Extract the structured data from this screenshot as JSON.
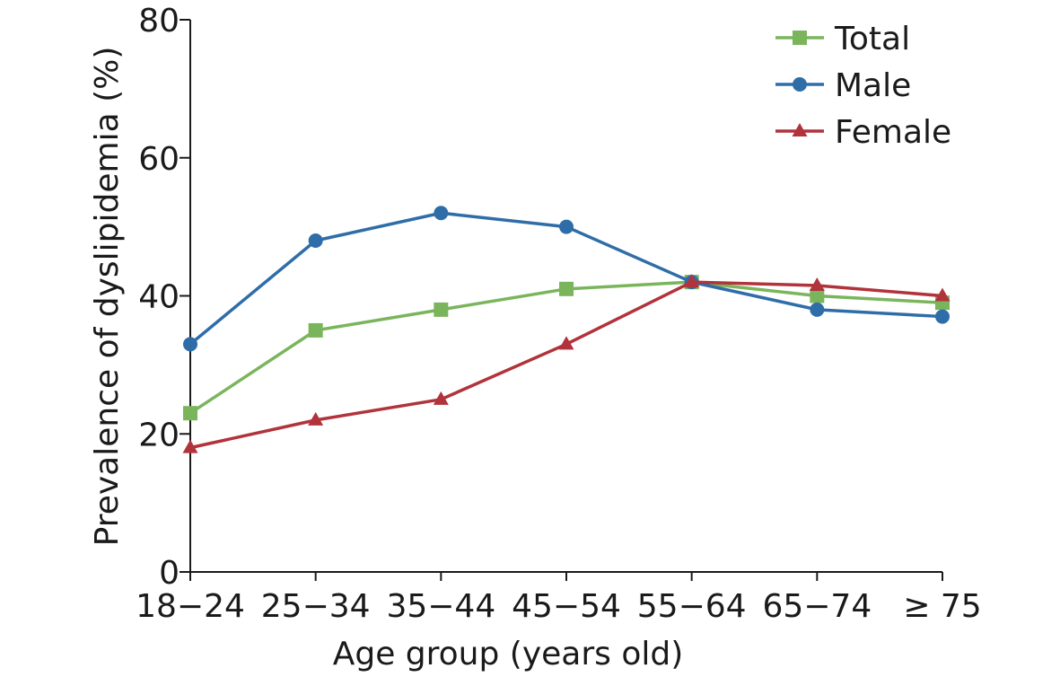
{
  "chart_data": {
    "type": "line",
    "title": "",
    "xlabel": "Age group (years old)",
    "ylabel": "Prevalence of dyslipidemia (%)",
    "categories": [
      "18−24",
      "25−34",
      "35−44",
      "45−54",
      "55−64",
      "65−74",
      "≥ 75"
    ],
    "ylim": [
      0,
      80
    ],
    "yticks": [
      "0",
      "20",
      "40",
      "60",
      "80"
    ],
    "grid": false,
    "legend_position": "top-right",
    "series": [
      {
        "name": "Total",
        "marker": "square",
        "color": "#7ab55c",
        "values": [
          23,
          35,
          38,
          41,
          42,
          40,
          39
        ]
      },
      {
        "name": "Male",
        "marker": "circle",
        "color": "#2f6da8",
        "values": [
          33,
          48,
          52,
          50,
          42,
          38,
          37
        ]
      },
      {
        "name": "Female",
        "marker": "triangle",
        "color": "#b1333b",
        "values": [
          18,
          22,
          25,
          33,
          42,
          41.5,
          40
        ]
      }
    ]
  }
}
